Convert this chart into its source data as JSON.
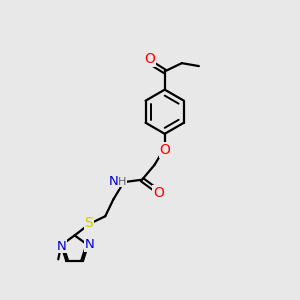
{
  "background_color": "#e8e8e8",
  "bond_color": "#000000",
  "atom_colors": {
    "O": "#ff0000",
    "N": "#0000cc",
    "S": "#cccc00",
    "H": "#606060",
    "C": "#000000"
  },
  "font_size": 8.5,
  "fig_size": [
    3.0,
    3.0
  ],
  "dpi": 100
}
